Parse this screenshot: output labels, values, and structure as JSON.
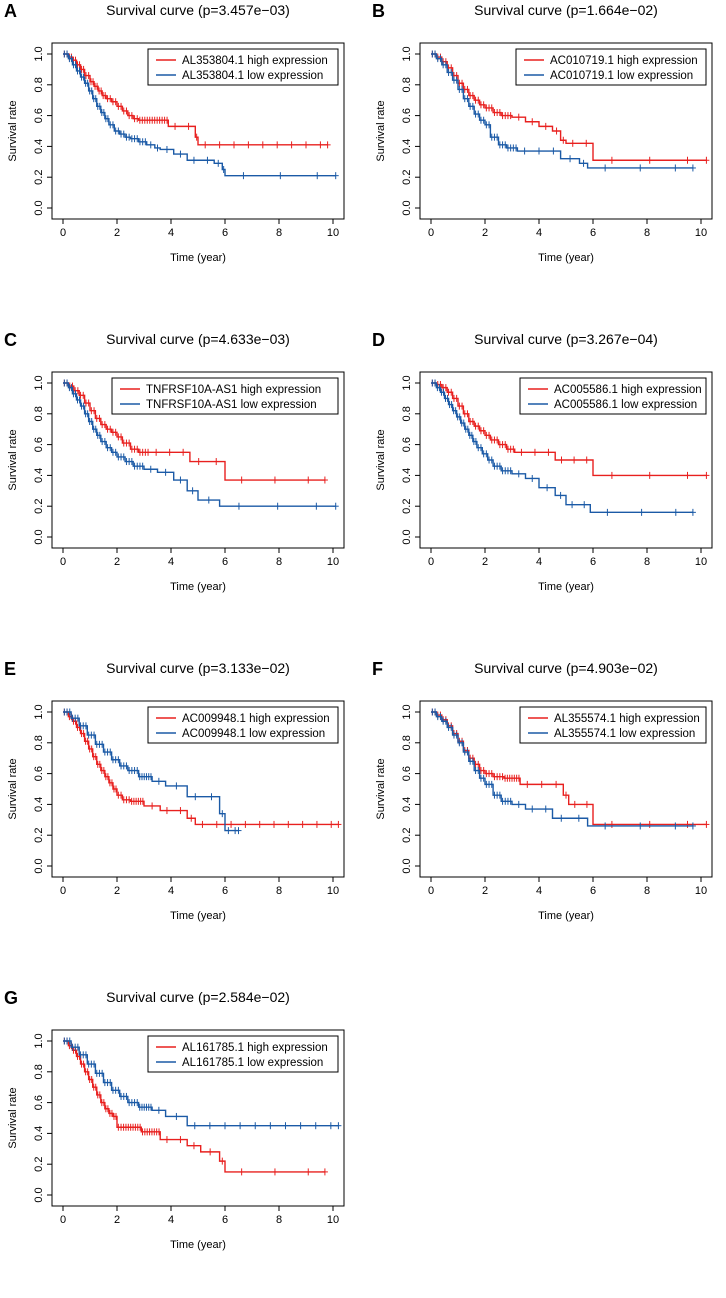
{
  "colors": {
    "high": "#e8201f",
    "low": "#1b5aa6",
    "axis": "#000000"
  },
  "chart_data": [
    {
      "panel": "A",
      "type": "line",
      "title": "Survival curve (p=3.457e−03)",
      "xlabel": "Time (year)",
      "ylabel": "Survival rate",
      "xlim": [
        0,
        10
      ],
      "ylim": [
        0,
        1
      ],
      "xticks": [
        "0",
        "2",
        "4",
        "6",
        "8",
        "10"
      ],
      "yticks": [
        "0.0",
        "0.2",
        "0.4",
        "0.6",
        "0.8",
        "1.0"
      ],
      "series": [
        {
          "name": "AL353804.1 high expression",
          "color": "high",
          "x": [
            0,
            0.2,
            0.35,
            0.5,
            0.65,
            0.8,
            1.0,
            1.15,
            1.3,
            1.45,
            1.6,
            1.8,
            2.0,
            2.2,
            2.4,
            2.6,
            2.8,
            3.9,
            4.9,
            5.0,
            9.8
          ],
          "y": [
            1.0,
            0.98,
            0.96,
            0.93,
            0.9,
            0.86,
            0.82,
            0.79,
            0.76,
            0.73,
            0.71,
            0.69,
            0.66,
            0.63,
            0.6,
            0.58,
            0.57,
            0.53,
            0.46,
            0.41,
            0.41
          ]
        },
        {
          "name": "AL353804.1 low expression",
          "color": "low",
          "x": [
            0,
            0.2,
            0.35,
            0.5,
            0.65,
            0.8,
            0.95,
            1.1,
            1.25,
            1.4,
            1.55,
            1.7,
            1.9,
            2.1,
            2.3,
            2.5,
            2.8,
            3.1,
            3.4,
            3.6,
            4.1,
            4.6,
            5.6,
            5.9,
            6.0,
            10.1
          ],
          "y": [
            1.0,
            0.97,
            0.93,
            0.89,
            0.85,
            0.81,
            0.76,
            0.71,
            0.66,
            0.62,
            0.58,
            0.54,
            0.5,
            0.48,
            0.46,
            0.45,
            0.43,
            0.41,
            0.39,
            0.38,
            0.35,
            0.31,
            0.29,
            0.25,
            0.21,
            0.21
          ]
        }
      ]
    },
    {
      "panel": "B",
      "type": "line",
      "title": "Survival curve (p=1.664e−02)",
      "xlabel": "Time (year)",
      "ylabel": "Survival rate",
      "xlim": [
        0,
        10
      ],
      "ylim": [
        0,
        1
      ],
      "xticks": [
        "0",
        "2",
        "4",
        "6",
        "8",
        "10"
      ],
      "yticks": [
        "0.0",
        "0.2",
        "0.4",
        "0.6",
        "0.8",
        "1.0"
      ],
      "series": [
        {
          "name": "AC010719.1 high expression",
          "color": "high",
          "x": [
            0,
            0.2,
            0.4,
            0.6,
            0.8,
            1.0,
            1.2,
            1.4,
            1.6,
            1.8,
            2.0,
            2.3,
            2.6,
            3.0,
            3.5,
            4.0,
            4.5,
            4.8,
            5.0,
            6.0,
            10.2
          ],
          "y": [
            1.0,
            0.98,
            0.95,
            0.91,
            0.86,
            0.81,
            0.77,
            0.73,
            0.7,
            0.67,
            0.65,
            0.62,
            0.6,
            0.59,
            0.56,
            0.53,
            0.5,
            0.44,
            0.42,
            0.31,
            0.31
          ]
        },
        {
          "name": "AC010719.1 low expression",
          "color": "low",
          "x": [
            0,
            0.2,
            0.4,
            0.6,
            0.8,
            1.0,
            1.2,
            1.4,
            1.6,
            1.8,
            2.0,
            2.2,
            2.5,
            2.8,
            3.2,
            4.8,
            5.5,
            5.8,
            9.7
          ],
          "y": [
            1.0,
            0.97,
            0.93,
            0.88,
            0.83,
            0.77,
            0.71,
            0.66,
            0.61,
            0.57,
            0.54,
            0.46,
            0.41,
            0.39,
            0.37,
            0.32,
            0.29,
            0.26,
            0.26
          ]
        }
      ]
    },
    {
      "panel": "C",
      "type": "line",
      "title": "Survival curve (p=4.633e−03)",
      "xlabel": "Time (year)",
      "ylabel": "Survival rate",
      "xlim": [
        0,
        10
      ],
      "ylim": [
        0,
        1
      ],
      "xticks": [
        "0",
        "2",
        "4",
        "6",
        "8",
        "10"
      ],
      "yticks": [
        "0.0",
        "0.2",
        "0.4",
        "0.6",
        "0.8",
        "1.0"
      ],
      "series": [
        {
          "name": "TNFRSF10A-AS1 high expression",
          "color": "high",
          "x": [
            0,
            0.2,
            0.4,
            0.6,
            0.8,
            1.0,
            1.2,
            1.4,
            1.6,
            1.8,
            2.0,
            2.2,
            2.5,
            2.8,
            3.2,
            4.7,
            6.0,
            9.7
          ],
          "y": [
            1.0,
            0.98,
            0.95,
            0.92,
            0.87,
            0.82,
            0.77,
            0.73,
            0.7,
            0.68,
            0.65,
            0.61,
            0.57,
            0.55,
            0.55,
            0.49,
            0.37,
            0.37
          ]
        },
        {
          "name": "TNFRSF10A-AS1 low expression",
          "color": "low",
          "x": [
            0,
            0.2,
            0.35,
            0.5,
            0.65,
            0.8,
            0.95,
            1.1,
            1.25,
            1.4,
            1.6,
            1.8,
            2.0,
            2.3,
            2.6,
            3.0,
            3.5,
            4.1,
            4.6,
            5.0,
            5.8,
            10.1
          ],
          "y": [
            1.0,
            0.97,
            0.93,
            0.89,
            0.85,
            0.8,
            0.75,
            0.7,
            0.66,
            0.62,
            0.58,
            0.55,
            0.52,
            0.49,
            0.46,
            0.44,
            0.42,
            0.37,
            0.3,
            0.24,
            0.2,
            0.2
          ]
        }
      ]
    },
    {
      "panel": "D",
      "type": "line",
      "title": "Survival curve (p=3.267e−04)",
      "xlabel": "Time (year)",
      "ylabel": "Survival rate",
      "xlim": [
        0,
        10
      ],
      "ylim": [
        0,
        1
      ],
      "xticks": [
        "0",
        "2",
        "4",
        "6",
        "8",
        "10"
      ],
      "yticks": [
        "0.0",
        "0.2",
        "0.4",
        "0.6",
        "0.8",
        "1.0"
      ],
      "series": [
        {
          "name": "AC005586.1 high expression",
          "color": "high",
          "x": [
            0,
            0.2,
            0.4,
            0.6,
            0.8,
            1.0,
            1.2,
            1.4,
            1.6,
            1.8,
            2.0,
            2.2,
            2.5,
            2.8,
            3.1,
            4.6,
            6.0,
            10.2
          ],
          "y": [
            1.0,
            0.99,
            0.97,
            0.94,
            0.9,
            0.85,
            0.8,
            0.75,
            0.72,
            0.69,
            0.66,
            0.63,
            0.6,
            0.57,
            0.55,
            0.5,
            0.4,
            0.4
          ]
        },
        {
          "name": "AC005586.1 low expression",
          "color": "low",
          "x": [
            0,
            0.2,
            0.35,
            0.5,
            0.65,
            0.8,
            0.95,
            1.1,
            1.25,
            1.4,
            1.55,
            1.7,
            1.9,
            2.1,
            2.3,
            2.6,
            3.0,
            3.5,
            4.0,
            4.6,
            5.0,
            5.9,
            9.7
          ],
          "y": [
            1.0,
            0.97,
            0.94,
            0.9,
            0.86,
            0.82,
            0.78,
            0.74,
            0.7,
            0.66,
            0.62,
            0.58,
            0.54,
            0.5,
            0.46,
            0.43,
            0.41,
            0.38,
            0.32,
            0.27,
            0.21,
            0.16,
            0.16
          ]
        }
      ]
    },
    {
      "panel": "E",
      "type": "line",
      "title": "Survival curve (p=3.133e−02)",
      "xlabel": "Time (year)",
      "ylabel": "Survival rate",
      "xlim": [
        0,
        10
      ],
      "ylim": [
        0,
        1
      ],
      "xticks": [
        "0",
        "2",
        "4",
        "6",
        "8",
        "10"
      ],
      "yticks": [
        "0.0",
        "0.2",
        "0.4",
        "0.6",
        "0.8",
        "1.0"
      ],
      "series": [
        {
          "name": "AC009948.1 high expression",
          "color": "high",
          "x": [
            0,
            0.2,
            0.35,
            0.5,
            0.65,
            0.8,
            0.95,
            1.1,
            1.25,
            1.4,
            1.55,
            1.7,
            1.85,
            2.0,
            2.2,
            2.5,
            3.0,
            3.6,
            4.6,
            4.9,
            10.2
          ],
          "y": [
            1.0,
            0.97,
            0.94,
            0.9,
            0.86,
            0.81,
            0.76,
            0.71,
            0.66,
            0.62,
            0.58,
            0.54,
            0.5,
            0.46,
            0.43,
            0.42,
            0.39,
            0.36,
            0.31,
            0.27,
            0.27
          ]
        },
        {
          "name": "AC009948.1 low expression",
          "color": "low",
          "x": [
            0,
            0.3,
            0.6,
            0.9,
            1.2,
            1.5,
            1.8,
            2.1,
            2.4,
            2.8,
            3.3,
            3.8,
            4.6,
            5.8,
            6.0,
            6.5
          ],
          "y": [
            1.0,
            0.96,
            0.91,
            0.85,
            0.79,
            0.74,
            0.69,
            0.65,
            0.62,
            0.58,
            0.55,
            0.52,
            0.45,
            0.34,
            0.23,
            0.23
          ]
        }
      ]
    },
    {
      "panel": "F",
      "type": "line",
      "title": "Survival curve (p=4.903e−02)",
      "xlabel": "Time (year)",
      "ylabel": "Survival rate",
      "xlim": [
        0,
        10
      ],
      "ylim": [
        0,
        1
      ],
      "xticks": [
        "0",
        "2",
        "4",
        "6",
        "8",
        "10"
      ],
      "yticks": [
        "0.0",
        "0.2",
        "0.4",
        "0.6",
        "0.8",
        "1.0"
      ],
      "series": [
        {
          "name": "AL355574.1 high expression",
          "color": "high",
          "x": [
            0,
            0.2,
            0.4,
            0.6,
            0.8,
            1.0,
            1.2,
            1.4,
            1.6,
            1.8,
            2.0,
            2.3,
            2.7,
            3.3,
            4.9,
            5.1,
            6.0,
            10.2
          ],
          "y": [
            1.0,
            0.98,
            0.95,
            0.91,
            0.86,
            0.81,
            0.75,
            0.7,
            0.66,
            0.62,
            0.6,
            0.58,
            0.57,
            0.53,
            0.46,
            0.4,
            0.27,
            0.27
          ]
        },
        {
          "name": "AL355574.1 low expression",
          "color": "low",
          "x": [
            0,
            0.2,
            0.4,
            0.6,
            0.8,
            1.0,
            1.2,
            1.4,
            1.6,
            1.8,
            2.0,
            2.3,
            2.6,
            3.0,
            3.5,
            4.5,
            5.8,
            9.7
          ],
          "y": [
            1.0,
            0.97,
            0.94,
            0.9,
            0.85,
            0.8,
            0.74,
            0.68,
            0.62,
            0.57,
            0.53,
            0.46,
            0.42,
            0.4,
            0.37,
            0.31,
            0.26,
            0.26
          ]
        }
      ]
    },
    {
      "panel": "G",
      "type": "line",
      "title": "Survival curve (p=2.584e−02)",
      "xlabel": "Time (year)",
      "ylabel": "Survival rate",
      "xlim": [
        0,
        10
      ],
      "ylim": [
        0,
        1
      ],
      "xticks": [
        "0",
        "2",
        "4",
        "6",
        "8",
        "10"
      ],
      "yticks": [
        "0.0",
        "0.2",
        "0.4",
        "0.6",
        "0.8",
        "1.0"
      ],
      "series": [
        {
          "name": "AL161785.1 high expression",
          "color": "high",
          "x": [
            0,
            0.2,
            0.35,
            0.5,
            0.65,
            0.8,
            0.95,
            1.1,
            1.25,
            1.4,
            1.55,
            1.7,
            1.85,
            2.0,
            2.2,
            2.9,
            3.6,
            4.6,
            5.1,
            5.8,
            6.0,
            9.7
          ],
          "y": [
            1.0,
            0.97,
            0.94,
            0.9,
            0.85,
            0.8,
            0.75,
            0.7,
            0.65,
            0.6,
            0.56,
            0.53,
            0.51,
            0.44,
            0.44,
            0.41,
            0.36,
            0.32,
            0.28,
            0.22,
            0.15,
            0.15
          ]
        },
        {
          "name": "AL161785.1 low expression",
          "color": "low",
          "x": [
            0,
            0.3,
            0.6,
            0.9,
            1.2,
            1.5,
            1.8,
            2.1,
            2.4,
            2.8,
            3.3,
            3.8,
            4.6,
            10.2
          ],
          "y": [
            1.0,
            0.96,
            0.91,
            0.85,
            0.79,
            0.73,
            0.68,
            0.64,
            0.6,
            0.57,
            0.55,
            0.51,
            0.45,
            0.45
          ]
        }
      ]
    }
  ]
}
